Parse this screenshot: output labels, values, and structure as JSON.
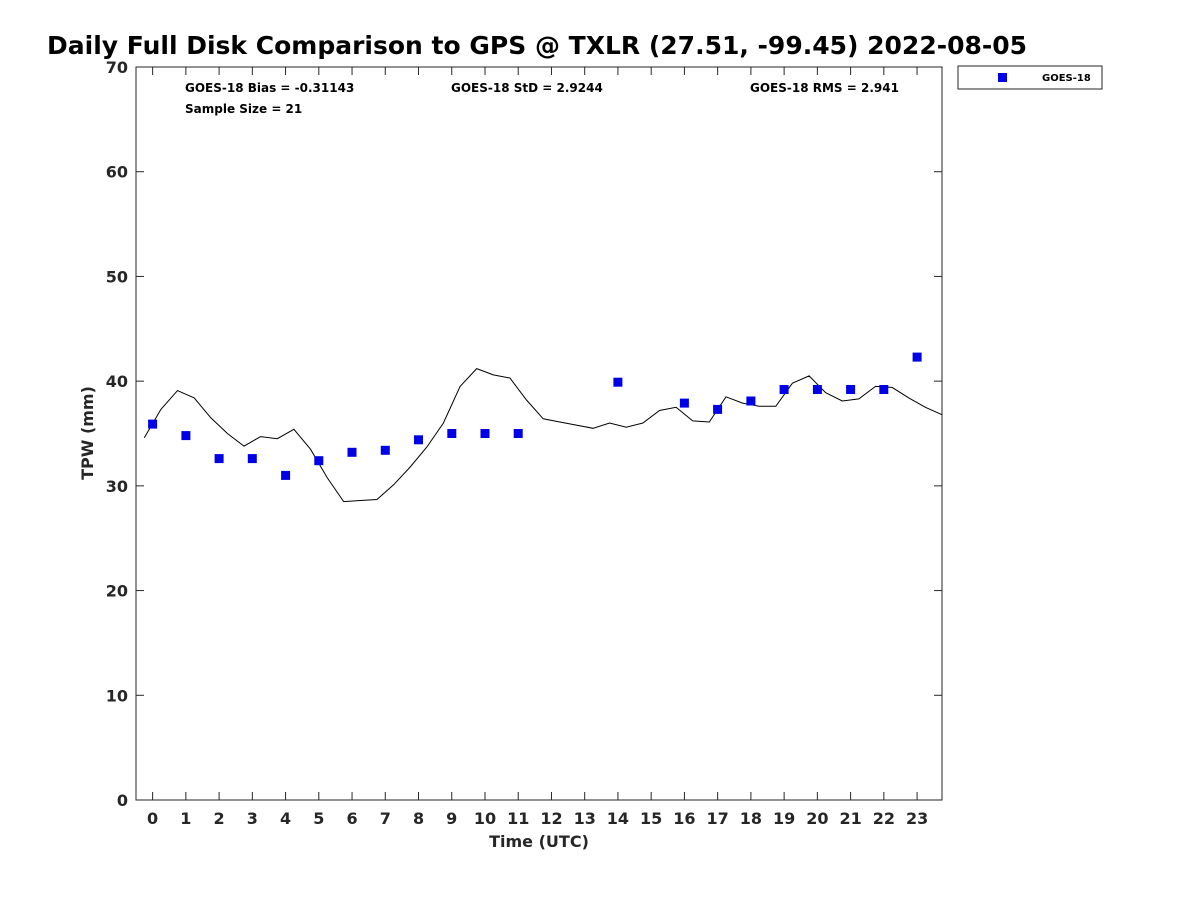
{
  "chart_data": {
    "type": "scatter",
    "title": "Daily Full Disk Comparison to GPS @ TXLR (27.51, -99.45) 2022-08-05",
    "xlabel": "Time (UTC)",
    "ylabel": "TPW (mm)",
    "xlim": [
      -0.5,
      23.75
    ],
    "ylim": [
      0,
      70
    ],
    "x_ticks": [
      {
        "value": 0,
        "label": "0"
      },
      {
        "value": 1,
        "label": "1"
      },
      {
        "value": 2,
        "label": "2"
      },
      {
        "value": 3,
        "label": "3"
      },
      {
        "value": 4,
        "label": "4"
      },
      {
        "value": 5,
        "label": "5"
      },
      {
        "value": 6,
        "label": "6"
      },
      {
        "value": 7,
        "label": "7"
      },
      {
        "value": 8,
        "label": "8"
      },
      {
        "value": 9,
        "label": "9"
      },
      {
        "value": 10,
        "label": "10"
      },
      {
        "value": 11,
        "label": "11"
      },
      {
        "value": 12,
        "label": "12"
      },
      {
        "value": 13,
        "label": "13"
      },
      {
        "value": 14,
        "label": "14"
      },
      {
        "value": 15,
        "label": "15"
      },
      {
        "value": 16,
        "label": "16"
      },
      {
        "value": 17,
        "label": "17"
      },
      {
        "value": 18,
        "label": "18"
      },
      {
        "value": 19,
        "label": "19"
      },
      {
        "value": 20,
        "label": "20"
      },
      {
        "value": 21,
        "label": "21"
      },
      {
        "value": 22,
        "label": "22"
      },
      {
        "value": 23,
        "label": "23"
      }
    ],
    "y_ticks": [
      {
        "value": 0,
        "label": "0"
      },
      {
        "value": 10,
        "label": "10"
      },
      {
        "value": 20,
        "label": "20"
      },
      {
        "value": 30,
        "label": "30"
      },
      {
        "value": 40,
        "label": "40"
      },
      {
        "value": 50,
        "label": "50"
      },
      {
        "value": 60,
        "label": "60"
      },
      {
        "value": 70,
        "label": "70"
      }
    ],
    "stats": {
      "bias": "GOES-18 Bias = -0.31143",
      "std": "GOES-18 StD = 2.9244",
      "rms": "GOES-18 RMS = 2.941",
      "sample_size": "Sample Size = 21"
    },
    "legend": {
      "position": "top-right",
      "entries": [
        "GOES-18"
      ]
    },
    "grid": false,
    "series": [
      {
        "name": "GOES-18",
        "kind": "scatter",
        "marker": "square",
        "color": "#0000e6",
        "points": [
          {
            "x": 0,
            "y": 35.9
          },
          {
            "x": 1,
            "y": 34.8
          },
          {
            "x": 2,
            "y": 32.6
          },
          {
            "x": 3,
            "y": 32.6
          },
          {
            "x": 4,
            "y": 31.0
          },
          {
            "x": 5,
            "y": 32.4
          },
          {
            "x": 6,
            "y": 33.2
          },
          {
            "x": 7,
            "y": 33.4
          },
          {
            "x": 8,
            "y": 34.4
          },
          {
            "x": 9,
            "y": 35.0
          },
          {
            "x": 10,
            "y": 35.0
          },
          {
            "x": 11,
            "y": 35.0
          },
          {
            "x": 14,
            "y": 39.9
          },
          {
            "x": 16,
            "y": 37.9
          },
          {
            "x": 17,
            "y": 37.3
          },
          {
            "x": 18,
            "y": 38.1
          },
          {
            "x": 19,
            "y": 39.2
          },
          {
            "x": 20,
            "y": 39.2
          },
          {
            "x": 21,
            "y": 39.2
          },
          {
            "x": 22,
            "y": 39.2
          },
          {
            "x": 23,
            "y": 42.3
          }
        ]
      },
      {
        "kind": "line",
        "color": "#000000",
        "points": [
          {
            "x": -0.25,
            "y": 34.6
          },
          {
            "x": 0.25,
            "y": 37.3
          },
          {
            "x": 0.75,
            "y": 39.1
          },
          {
            "x": 1.25,
            "y": 38.4
          },
          {
            "x": 1.75,
            "y": 36.5
          },
          {
            "x": 2.25,
            "y": 35.0
          },
          {
            "x": 2.75,
            "y": 33.8
          },
          {
            "x": 3.25,
            "y": 34.7
          },
          {
            "x": 3.75,
            "y": 34.5
          },
          {
            "x": 4.25,
            "y": 35.4
          },
          {
            "x": 4.75,
            "y": 33.5
          },
          {
            "x": 5.25,
            "y": 30.8
          },
          {
            "x": 5.75,
            "y": 28.5
          },
          {
            "x": 6.25,
            "y": 28.6
          },
          {
            "x": 6.75,
            "y": 28.7
          },
          {
            "x": 7.25,
            "y": 30.1
          },
          {
            "x": 7.75,
            "y": 31.8
          },
          {
            "x": 8.25,
            "y": 33.7
          },
          {
            "x": 8.75,
            "y": 36.0
          },
          {
            "x": 9.25,
            "y": 39.5
          },
          {
            "x": 9.75,
            "y": 41.2
          },
          {
            "x": 10.25,
            "y": 40.6
          },
          {
            "x": 10.75,
            "y": 40.3
          },
          {
            "x": 11.25,
            "y": 38.2
          },
          {
            "x": 11.75,
            "y": 36.4
          },
          {
            "x": 12.25,
            "y": 36.1
          },
          {
            "x": 12.75,
            "y": 35.8
          },
          {
            "x": 13.25,
            "y": 35.5
          },
          {
            "x": 13.75,
            "y": 36.0
          },
          {
            "x": 14.25,
            "y": 35.6
          },
          {
            "x": 14.75,
            "y": 36.0
          },
          {
            "x": 15.25,
            "y": 37.2
          },
          {
            "x": 15.75,
            "y": 37.5
          },
          {
            "x": 16.25,
            "y": 36.2
          },
          {
            "x": 16.75,
            "y": 36.1
          },
          {
            "x": 17.25,
            "y": 38.5
          },
          {
            "x": 17.75,
            "y": 37.9
          },
          {
            "x": 18.25,
            "y": 37.6
          },
          {
            "x": 18.75,
            "y": 37.6
          },
          {
            "x": 19.25,
            "y": 39.8
          },
          {
            "x": 19.75,
            "y": 40.5
          },
          {
            "x": 20.25,
            "y": 38.9
          },
          {
            "x": 20.75,
            "y": 38.1
          },
          {
            "x": 21.25,
            "y": 38.3
          },
          {
            "x": 21.75,
            "y": 39.5
          },
          {
            "x": 22.25,
            "y": 39.4
          },
          {
            "x": 22.75,
            "y": 38.4
          },
          {
            "x": 23.25,
            "y": 37.5
          },
          {
            "x": 23.75,
            "y": 36.8
          }
        ]
      }
    ]
  }
}
